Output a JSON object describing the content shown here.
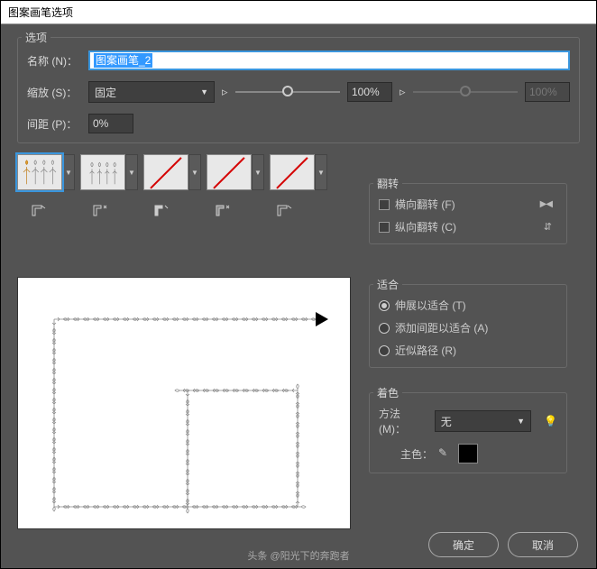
{
  "dialog": {
    "title": "图案画笔选项"
  },
  "options": {
    "legend": "选项",
    "name_label": "名称 (N)：",
    "name_value": "图案画笔_2",
    "scale_label": "缩放 (S)：",
    "scale_mode": "固定",
    "scale_value": "100%",
    "scale_value2": "100%",
    "spacing_label": "间距 (P)：",
    "spacing_value": "0%"
  },
  "flip": {
    "legend": "翻转",
    "horiz_label": "横向翻转 (F)",
    "vert_label": "纵向翻转 (C)"
  },
  "fit": {
    "legend": "适合",
    "stretch": "伸展以适合 (T)",
    "space": "添加间距以适合 (A)",
    "approx": "近似路径 (R)"
  },
  "colorize": {
    "legend": "着色",
    "method_label": "方法 (M)：",
    "method_value": "无",
    "key_label": "主色："
  },
  "buttons": {
    "ok": "确定",
    "cancel": "取消"
  },
  "watermark": "头条 @阳光下的奔跑者",
  "colors": {
    "bg": "#535353",
    "accent": "#3a96dd",
    "diag": "#d40000",
    "swatch": "#000000"
  }
}
